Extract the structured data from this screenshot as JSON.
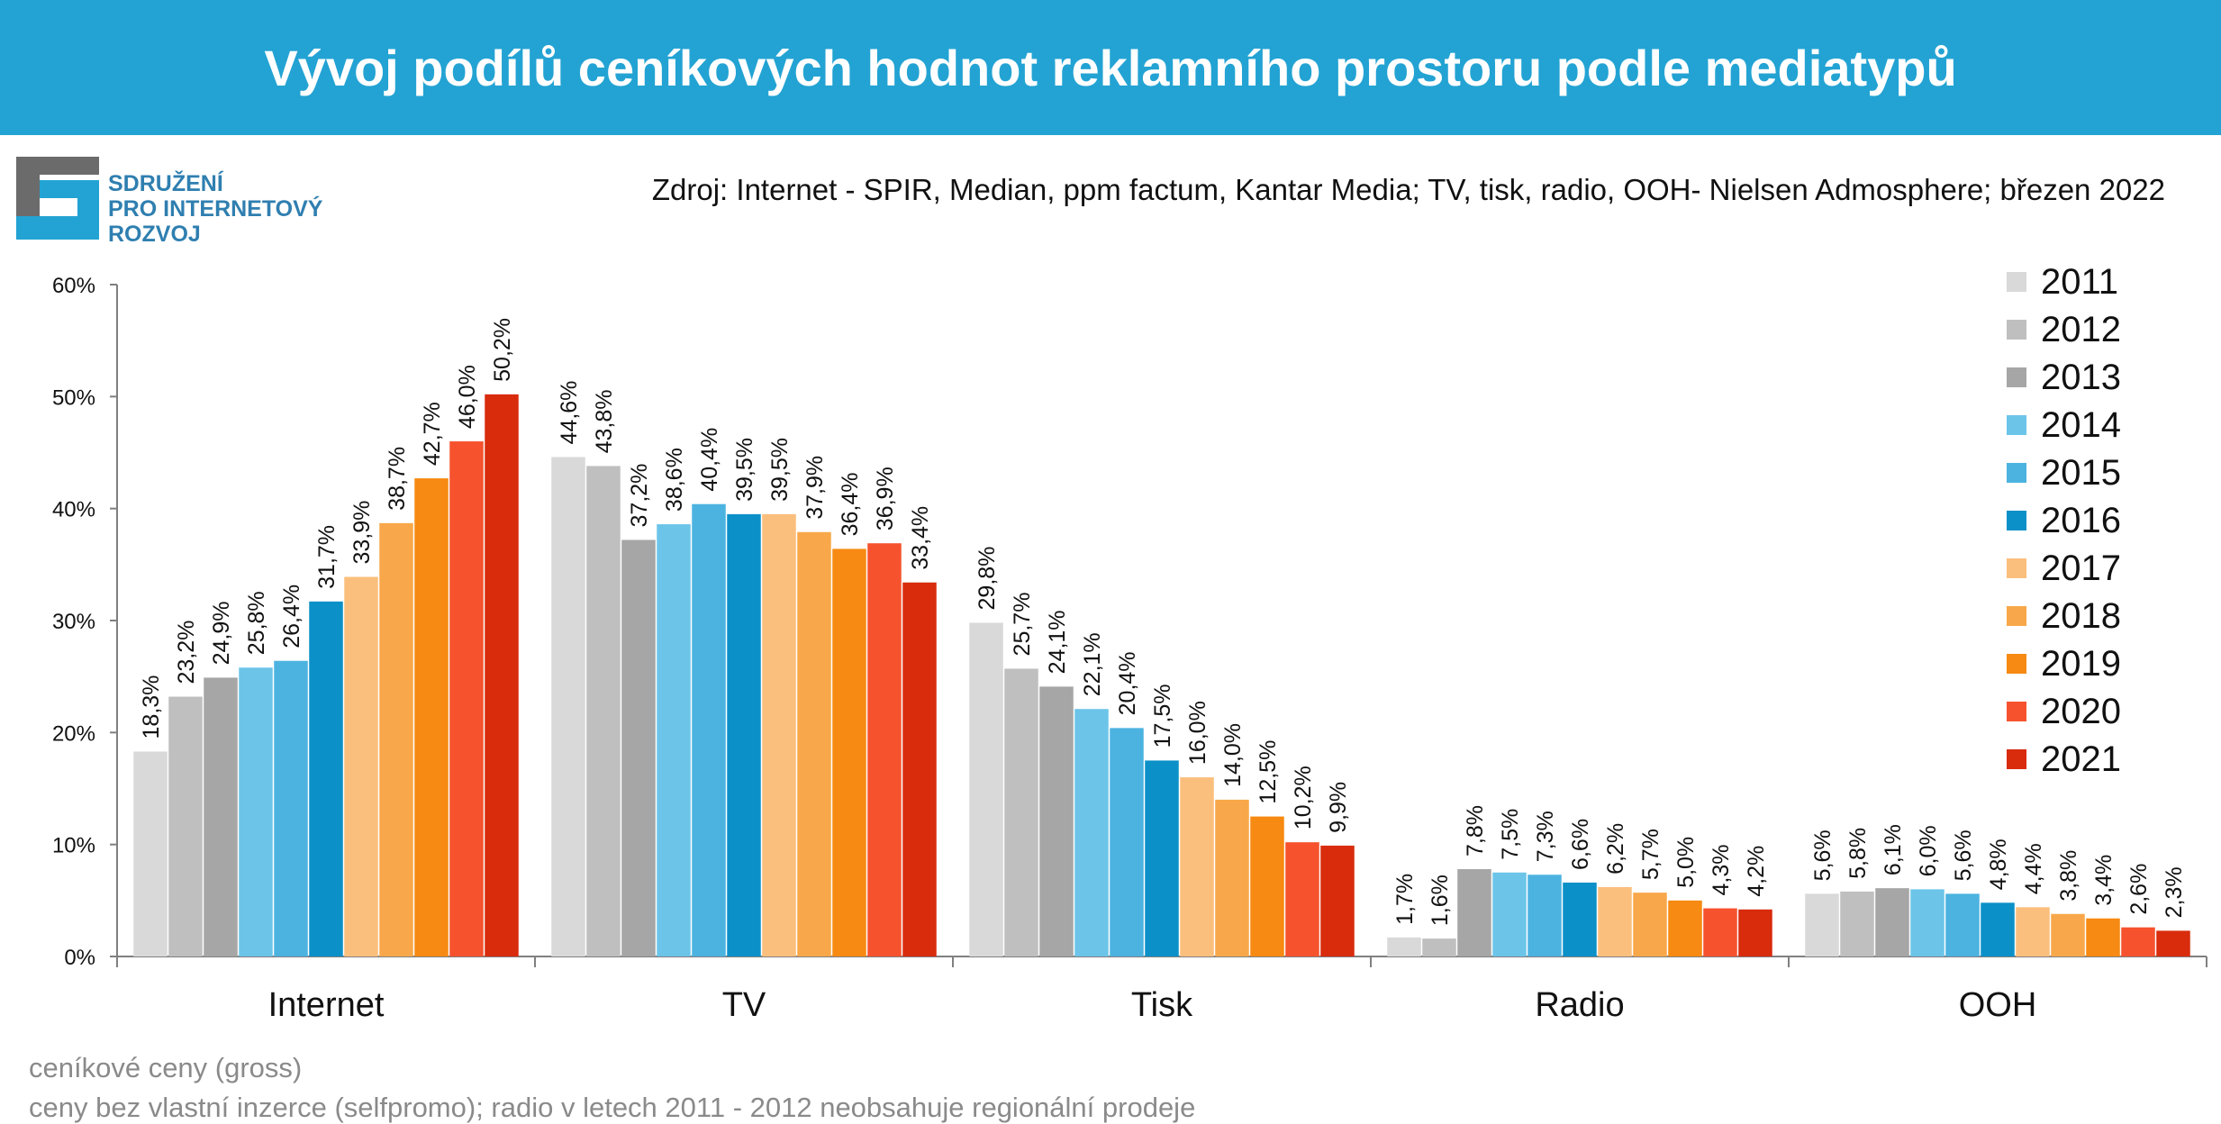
{
  "header": {
    "title": "Vývoj podílů ceníkových hodnot reklamního prostoru podle mediatypů",
    "source": "Zdroj: Internet - SPIR, Median, ppm factum, Kantar Media; TV, tisk, radio, OOH- Nielsen Admosphere; březen 2022"
  },
  "logo": {
    "lines": [
      "SDRUŽENÍ",
      "PRO INTERNETOVÝ",
      "ROZVOJ"
    ],
    "colors": [
      "#23a3d3",
      "#6b6b6b"
    ]
  },
  "chart_data": {
    "type": "bar",
    "categories": [
      "Internet",
      "TV",
      "Tisk",
      "Radio",
      "OOH"
    ],
    "y_ticks": [
      "0%",
      "10%",
      "20%",
      "30%",
      "40%",
      "50%",
      "60%"
    ],
    "ylim": [
      0,
      60
    ],
    "legend_position": "right",
    "grid": false,
    "series": [
      {
        "name": "2011",
        "color": "#d9d9d9",
        "values": [
          18.3,
          44.6,
          29.8,
          1.7,
          5.6
        ],
        "labels": [
          "18,3%",
          "44,6%",
          "29,8%",
          "1,7%",
          "5,6%"
        ]
      },
      {
        "name": "2012",
        "color": "#bfbfbf",
        "values": [
          23.2,
          43.8,
          25.7,
          1.6,
          5.8
        ],
        "labels": [
          "23,2%",
          "43,8%",
          "25,7%",
          "1,6%",
          "5,8%"
        ]
      },
      {
        "name": "2013",
        "color": "#a6a6a6",
        "values": [
          24.9,
          37.2,
          24.1,
          7.8,
          6.1
        ],
        "labels": [
          "24,9%",
          "37,2%",
          "24,1%",
          "7,8%",
          "6,1%"
        ]
      },
      {
        "name": "2014",
        "color": "#6cc5e9",
        "values": [
          25.8,
          38.6,
          22.1,
          7.5,
          6.0
        ],
        "labels": [
          "25,8%",
          "38,6%",
          "22,1%",
          "7,5%",
          "6,0%"
        ]
      },
      {
        "name": "2015",
        "color": "#4cb3e0",
        "values": [
          26.4,
          40.4,
          20.4,
          7.3,
          5.6
        ],
        "labels": [
          "26,4%",
          "40,4%",
          "20,4%",
          "7,3%",
          "5,6%"
        ]
      },
      {
        "name": "2016",
        "color": "#0c90c8",
        "values": [
          31.7,
          39.5,
          17.5,
          6.6,
          4.8
        ],
        "labels": [
          "31,7%",
          "39,5%",
          "17,5%",
          "6,6%",
          "4,8%"
        ]
      },
      {
        "name": "2017",
        "color": "#fbbf7d",
        "values": [
          33.9,
          39.5,
          16.0,
          6.2,
          4.4
        ],
        "labels": [
          "33,9%",
          "39,5%",
          "16,0%",
          "6,2%",
          "4,4%"
        ]
      },
      {
        "name": "2018",
        "color": "#f8a84a",
        "values": [
          38.7,
          37.9,
          14.0,
          5.7,
          3.8
        ],
        "labels": [
          "38,7%",
          "37,9%",
          "14,0%",
          "5,7%",
          "3,8%"
        ]
      },
      {
        "name": "2019",
        "color": "#f78a12",
        "values": [
          42.7,
          36.4,
          12.5,
          5.0,
          3.4
        ],
        "labels": [
          "42,7%",
          "36,4%",
          "12,5%",
          "5,0%",
          "3,4%"
        ]
      },
      {
        "name": "2020",
        "color": "#f6522e",
        "values": [
          46.0,
          36.9,
          10.2,
          4.3,
          2.6
        ],
        "labels": [
          "46,0%",
          "36,9%",
          "10,2%",
          "4,3%",
          "2,6%"
        ]
      },
      {
        "name": "2021",
        "color": "#d82c0d",
        "values": [
          50.2,
          33.4,
          9.9,
          4.2,
          2.3
        ],
        "labels": [
          "50,2%",
          "33,4%",
          "9,9%",
          "4,2%",
          "2,3%"
        ]
      }
    ]
  },
  "footnotes": [
    "ceníkové ceny (gross)",
    "ceny bez vlastní inzerce (selfpromo); radio v letech 2011 - 2012 neobsahuje regionální prodeje"
  ]
}
